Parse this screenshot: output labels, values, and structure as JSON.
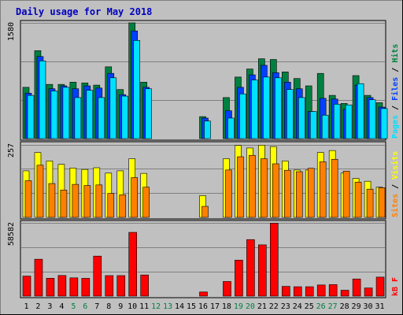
{
  "chart_data": {
    "type": "bar",
    "title": "Daily usage for May 2018",
    "colors": {
      "hits": "#008040",
      "files": "#0040ff",
      "pages": "#00e0ff",
      "visits": "#ffff00",
      "sites": "#ff8000",
      "kbytes": "#ff0000",
      "weekend_day": "#008040",
      "weekday_day": "#000000",
      "title": "#0000c0",
      "frame": "#000000",
      "grid": "#808080"
    },
    "days": [
      1,
      2,
      3,
      4,
      5,
      6,
      7,
      8,
      9,
      10,
      11,
      12,
      13,
      14,
      15,
      16,
      17,
      18,
      19,
      20,
      21,
      22,
      23,
      24,
      25,
      26,
      27,
      28,
      29,
      30,
      31
    ],
    "weekend_days": [
      5,
      6,
      12,
      13,
      19,
      20,
      26,
      27
    ],
    "panels": [
      {
        "key": "requests",
        "max_label": "1580",
        "max": 1580,
        "legend": [
          {
            "text": "Pages",
            "series": "pages"
          },
          {
            "text": " / ",
            "series": "separator"
          },
          {
            "text": "Files",
            "series": "files"
          },
          {
            "text": " / ",
            "series": "separator"
          },
          {
            "text": "Hits",
            "series": "hits"
          }
        ],
        "series": [
          {
            "name": "Hits",
            "key": "hits",
            "values": [
              700,
              1200,
              740,
              740,
              770,
              760,
              730,
              980,
              670,
              1580,
              770,
              0,
              0,
              0,
              0,
              300,
              0,
              560,
              840,
              950,
              1090,
              1080,
              910,
              820,
              720,
              890,
              590,
              480,
              860,
              590,
              490
            ]
          },
          {
            "name": "Files",
            "key": "files",
            "values": [
              620,
              1120,
              680,
              720,
              680,
              720,
              690,
              890,
              600,
              1470,
              700,
              0,
              0,
              0,
              0,
              280,
              0,
              380,
              700,
              870,
              1000,
              900,
              770,
              680,
              370,
              550,
              540,
              400,
              730,
              560,
              430
            ]
          },
          {
            "name": "Pages",
            "key": "pages",
            "values": [
              590,
              1060,
              650,
              700,
              560,
              660,
              560,
              830,
              580,
              1340,
              680,
              0,
              0,
              0,
              0,
              240,
              0,
              280,
              610,
              800,
              840,
              830,
              670,
              560,
              370,
              320,
              470,
              460,
              750,
              530,
              410
            ]
          }
        ]
      },
      {
        "key": "visitors",
        "max_label": "257",
        "max": 257,
        "legend": [
          {
            "text": "Sites",
            "series": "sites"
          },
          {
            "text": " / ",
            "series": "separator"
          },
          {
            "text": "Visits",
            "series": "visits"
          }
        ],
        "series": [
          {
            "name": "Visits",
            "key": "visits",
            "values": [
              165,
              230,
              200,
              188,
              175,
              170,
              176,
              157,
              165,
              208,
              156,
              0,
              0,
              0,
              0,
              77,
              0,
              208,
              255,
              246,
              256,
              251,
              200,
              168,
              168,
              230,
              237,
              157,
              138,
              128,
              107
            ]
          },
          {
            "name": "Sites",
            "key": "sites",
            "values": [
              130,
              185,
              120,
              97,
              117,
              113,
              115,
              85,
              80,
              141,
              107,
              0,
              0,
              0,
              0,
              39,
              0,
              168,
              215,
              220,
              208,
              190,
              167,
              162,
              174,
              197,
              206,
              164,
              125,
              100,
              105
            ]
          }
        ]
      },
      {
        "key": "kbytes",
        "max_label": "58582",
        "max": 58582,
        "legend": [
          {
            "text": "kB F",
            "series": "kbytes"
          }
        ],
        "series": [
          {
            "name": "kB F",
            "key": "kbytes",
            "values": [
              16000,
              29500,
              14300,
              16500,
              14600,
              14200,
              32000,
              16400,
              16400,
              51000,
              16900,
              0,
              0,
              0,
              0,
              3300,
              0,
              11700,
              28800,
              45200,
              41000,
              58300,
              7800,
              7500,
              7500,
              8900,
              9200,
              4700,
              13700,
              6500,
              15200
            ]
          }
        ]
      }
    ]
  }
}
